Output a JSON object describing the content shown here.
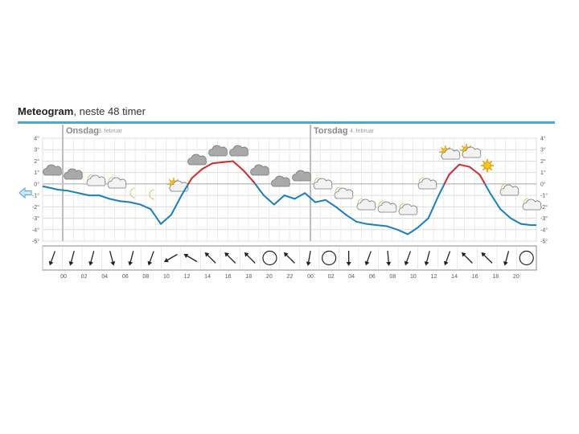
{
  "title": {
    "bold": "Meteogram",
    "rest": ", neste 48 timer"
  },
  "days": [
    {
      "name": "Onsdag",
      "date": "3. februar"
    },
    {
      "name": "Torsdag",
      "date": "4. februar"
    }
  ],
  "colors": {
    "cold": "#1a7fc0",
    "warm": "#d42a2a",
    "accent": "#4da6d9"
  },
  "chart_data": {
    "type": "line",
    "title": "Meteogram, neste 48 timer",
    "xlabel": "",
    "ylabel": "",
    "ylim": [
      -5,
      4
    ],
    "y_left_ticks": [
      "4°",
      "3°",
      "2°",
      "1°",
      "0°",
      "-1°",
      "-2°",
      "-3°",
      "-4°",
      "-5°"
    ],
    "y_right_ticks": [
      "4°",
      "3°",
      "2°",
      "1°",
      "0°",
      "-1°",
      "-2°",
      "-3°",
      "-4°",
      "-5°"
    ],
    "x_tick_labels": [
      "00",
      "02",
      "04",
      "06",
      "08",
      "10",
      "12",
      "14",
      "16",
      "18",
      "20",
      "22",
      "00",
      "02",
      "04",
      "06",
      "08",
      "10",
      "12",
      "14",
      "16",
      "18",
      "20"
    ],
    "hours": [
      0,
      1,
      2,
      3,
      4,
      5,
      6,
      7,
      8,
      9,
      10,
      11,
      12,
      13,
      14,
      15,
      16,
      17,
      18,
      19,
      20,
      21,
      22,
      23,
      24,
      25,
      26,
      27,
      28,
      29,
      30,
      31,
      32,
      33,
      34,
      35,
      36,
      37,
      38,
      39,
      40,
      41,
      42,
      43,
      44,
      45,
      46,
      47
    ],
    "series": [
      {
        "values": [
          -0.3,
          -0.5,
          -0.6,
          -0.8,
          -1.0,
          -1.0,
          -1.3,
          -1.5,
          -1.6,
          -1.8,
          -2.2,
          -3.5,
          -2.7,
          -1.0,
          0.5,
          1.3,
          1.8,
          1.9,
          2.0,
          1.2,
          0.2,
          -1.0,
          -1.8,
          -1.0,
          -1.3,
          -0.8,
          -1.6,
          -1.4,
          -2.0,
          -2.7,
          -3.3,
          -3.5,
          -3.6,
          -3.7,
          -4.0,
          -4.4,
          -3.8,
          -3.0,
          -1.0,
          0.8,
          1.7,
          1.5,
          0.8,
          -0.8,
          -2.2,
          -3.0,
          -3.5,
          -3.6
        ]
      }
    ],
    "weather_symbols": [
      "cloudy",
      "cloudy",
      "partly-cloudy-night",
      "partly-cloudy-night",
      "clear-night",
      "clear-night",
      "clear-night",
      "partly-cloudy-sun",
      "cloudy",
      "cloudy",
      "cloudy",
      "cloudy",
      "cloudy",
      "cloudy",
      "partly-cloudy-night",
      "partly-cloudy-night",
      "partly-cloudy-night",
      "partly-cloudy-night",
      "partly-cloudy-night",
      "partly-cloudy-night",
      "partly-cloudy-sun",
      "partly-cloudy-sun",
      "sunny",
      "sunny",
      "partly-cloudy-night",
      "partly-cloudy-night"
    ],
    "wind_directions_deg": [
      20,
      15,
      15,
      345,
      15,
      20,
      60,
      120,
      135,
      135,
      135,
      null,
      135,
      10,
      null,
      0,
      20,
      355,
      20,
      15,
      20,
      135,
      135,
      15,
      null
    ],
    "wind_labels": [
      "calm",
      "calm",
      "calm"
    ]
  }
}
